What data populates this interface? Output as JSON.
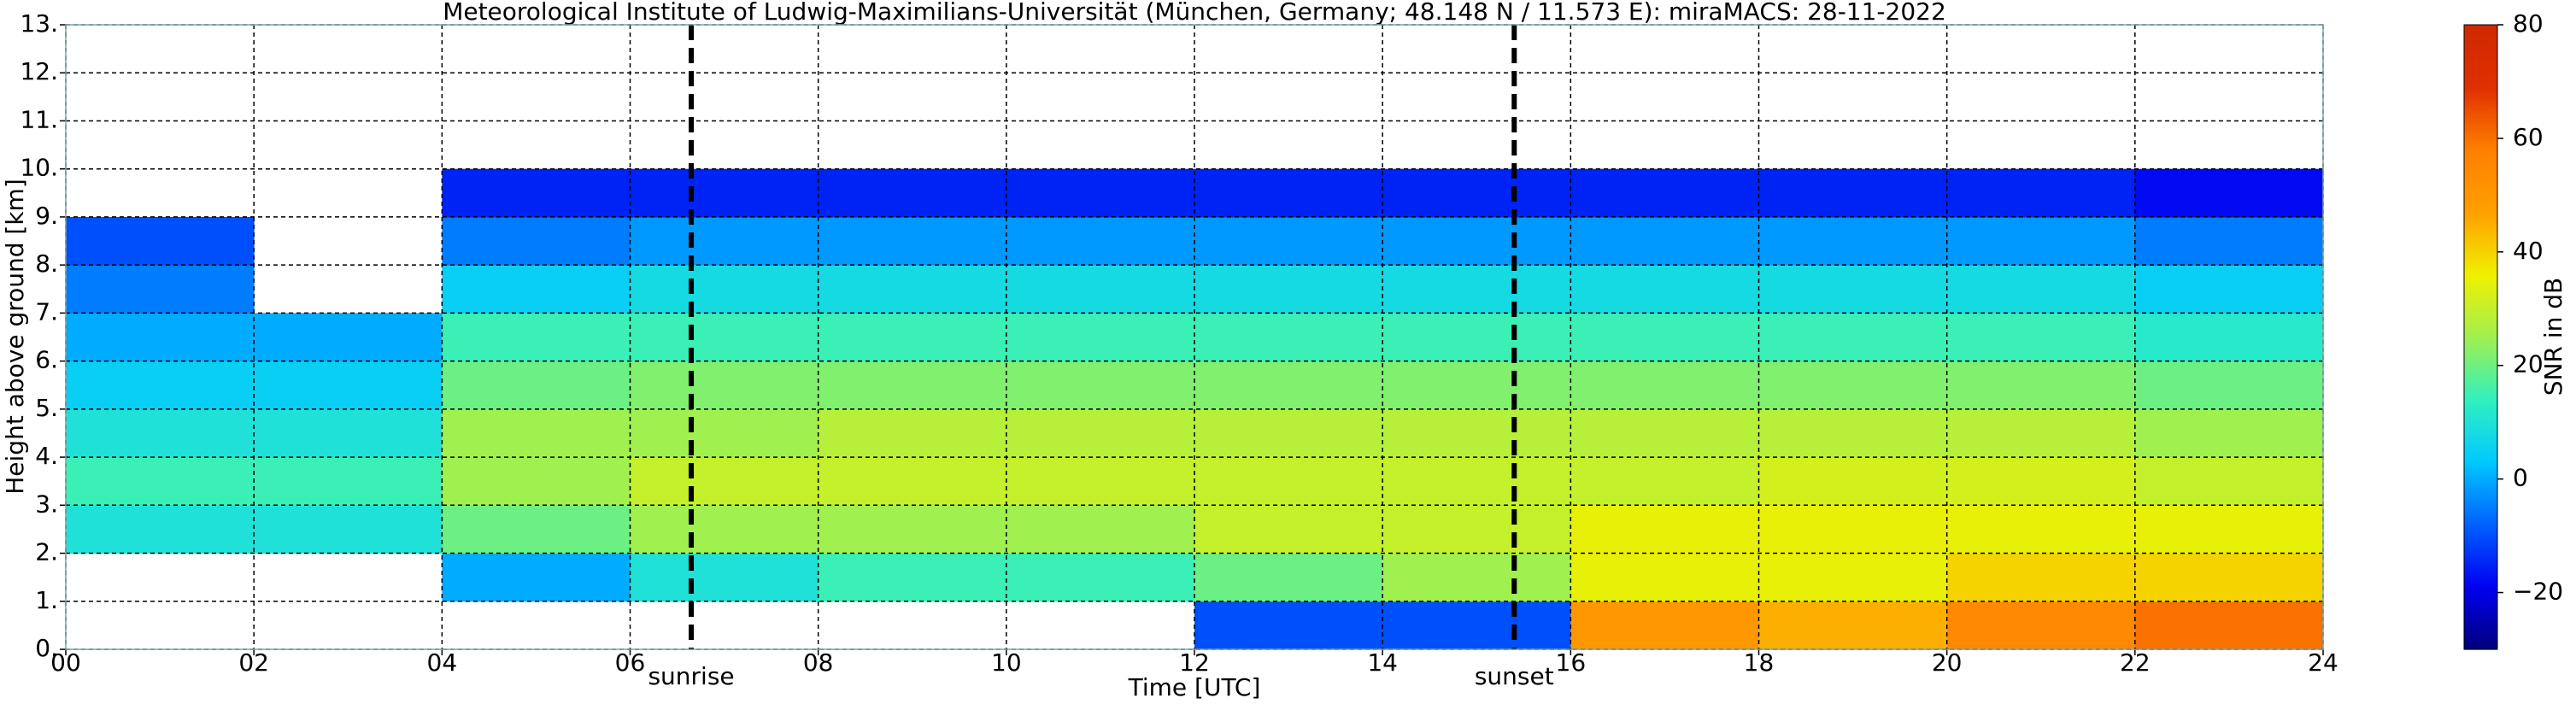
{
  "chart_data": {
    "type": "heatmap",
    "title": "Meteorological Institute of Ludwig-Maximilians-Universität (München, Germany; 48.148 N / 11.573 E):    miraMACS: 28-11-2022",
    "x_label": "Time [UTC]",
    "y_label": "Height above ground [km]",
    "colorbar_label": "SNR in dB",
    "x": [
      0,
      2,
      4,
      6,
      8,
      10,
      12,
      14,
      16,
      18,
      20,
      22,
      24
    ],
    "y": [
      0,
      1,
      2,
      3,
      4,
      5,
      6,
      7,
      8,
      9,
      10
    ],
    "values": [
      [
        null,
        null,
        null,
        null,
        null,
        null,
        -10,
        -10,
        50,
        45,
        55,
        60
      ],
      [
        null,
        null,
        0,
        10,
        15,
        15,
        20,
        25,
        35,
        35,
        40,
        40
      ],
      [
        10,
        10,
        20,
        25,
        25,
        25,
        30,
        30,
        35,
        35,
        35,
        35
      ],
      [
        15,
        15,
        25,
        30,
        30,
        30,
        30,
        30,
        30,
        32,
        32,
        30
      ],
      [
        10,
        10,
        25,
        25,
        28,
        28,
        28,
        28,
        28,
        28,
        28,
        25
      ],
      [
        5,
        5,
        20,
        22,
        22,
        22,
        22,
        22,
        22,
        22,
        22,
        20
      ],
      [
        0,
        0,
        15,
        15,
        15,
        15,
        15,
        15,
        15,
        15,
        15,
        12
      ],
      [
        -5,
        null,
        5,
        8,
        8,
        8,
        8,
        8,
        8,
        8,
        8,
        5
      ],
      [
        -10,
        null,
        -5,
        -2,
        -2,
        -2,
        -2,
        -2,
        -2,
        -2,
        -2,
        -5
      ],
      [
        null,
        null,
        -15,
        -15,
        -15,
        -15,
        -15,
        -15,
        -15,
        -15,
        -15,
        -18
      ]
    ],
    "xlim": [
      0,
      24
    ],
    "xticks": [
      {
        "value": 0,
        "label": "00"
      },
      {
        "value": 2,
        "label": "02"
      },
      {
        "value": 4,
        "label": "04"
      },
      {
        "value": 6,
        "label": "06"
      },
      {
        "value": 8,
        "label": "08"
      },
      10,
      12,
      14,
      16,
      18,
      20,
      22,
      24
    ],
    "ylim": [
      0,
      13
    ],
    "yticks": [
      {
        "value": 0,
        "label": "0."
      },
      {
        "value": 1,
        "label": "1."
      },
      {
        "value": 2,
        "label": "2."
      },
      {
        "value": 3,
        "label": "3."
      },
      {
        "value": 4,
        "label": "4."
      },
      {
        "value": 5,
        "label": "5."
      },
      {
        "value": 6,
        "label": "6."
      },
      {
        "value": 7,
        "label": "7."
      },
      {
        "value": 8,
        "label": "8."
      },
      {
        "value": 9,
        "label": "9."
      },
      {
        "value": 10,
        "label": "10."
      },
      {
        "value": 11,
        "label": "11."
      },
      {
        "value": 12,
        "label": "12."
      },
      {
        "value": 13,
        "label": "13."
      }
    ],
    "zlim": [
      -30,
      80
    ],
    "zticks": [
      {
        "value": -20,
        "label": "−20"
      },
      0,
      20,
      40,
      60,
      80
    ],
    "colormap": [
      "#00007a",
      "#0000f0",
      "#0060ff",
      "#00c8ff",
      "#30f0c0",
      "#a0f050",
      "#f0f000",
      "#ffa000",
      "#ff8000",
      "#e03000",
      "#d02800"
    ],
    "grid": true,
    "annotations": [
      {
        "x": 6.65,
        "label": "sunrise"
      },
      {
        "x": 15.4,
        "label": "sunset"
      }
    ]
  }
}
